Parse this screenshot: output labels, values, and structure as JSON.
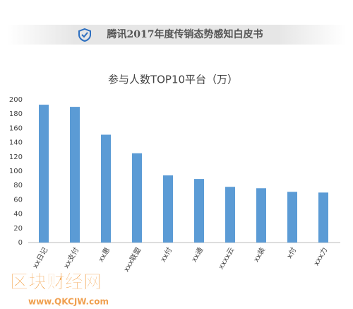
{
  "header": {
    "title": "腾讯2017年度传销态势感知白皮书"
  },
  "chart_data": {
    "type": "bar",
    "title": "参与人数TOP10平台（万）",
    "categories": [
      "xx日记",
      "xx支付",
      "xx惠",
      "xxx联盟",
      "xx付",
      "xx通",
      "xxxx云",
      "xx装",
      "x付",
      "xxx力"
    ],
    "values": [
      193,
      190,
      151,
      125,
      94,
      89,
      78,
      76,
      71,
      70
    ],
    "color": "#5b9bd5",
    "ylim": [
      0,
      200
    ],
    "yticks": [
      0,
      20,
      40,
      60,
      80,
      100,
      120,
      140,
      160,
      180,
      200
    ],
    "grid": false
  },
  "watermark": {
    "title": "区块财经网",
    "url": "www.QKCJW.com"
  }
}
